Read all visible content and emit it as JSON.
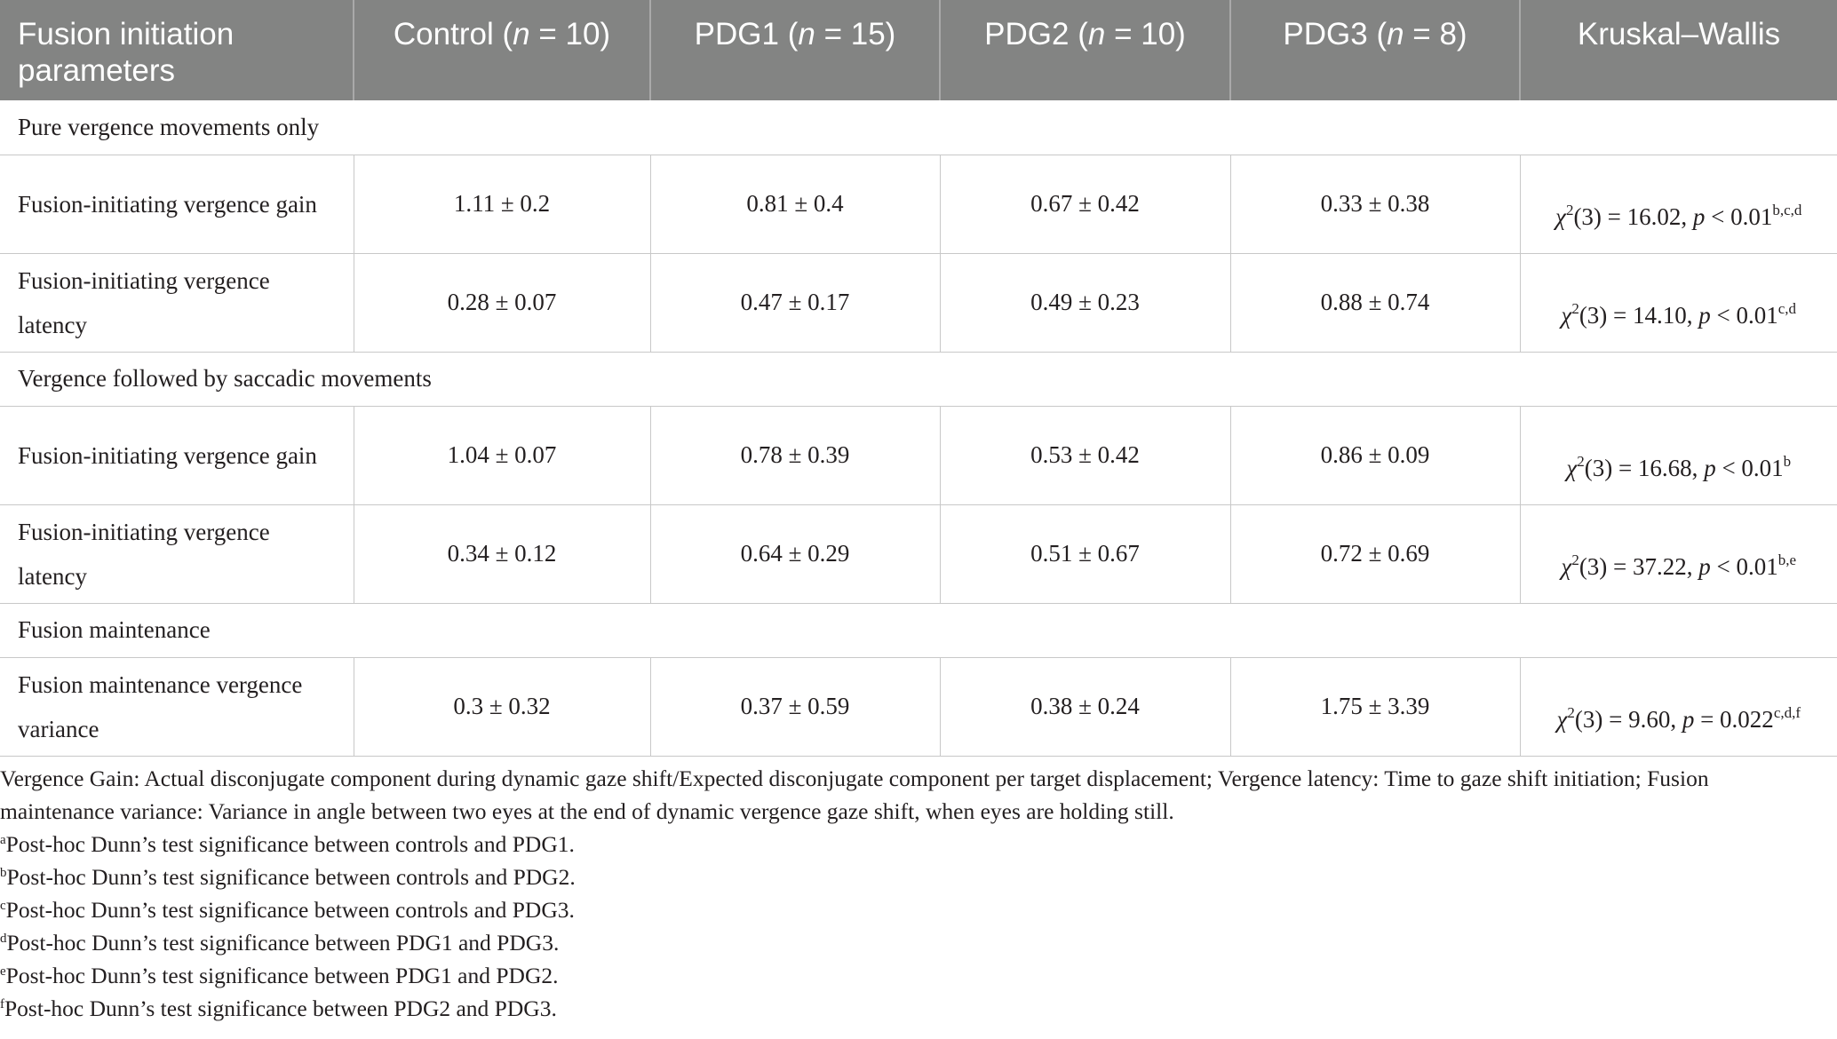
{
  "table": {
    "headers": [
      {
        "text": "Fusion initiation parameters"
      },
      {
        "pre": "Control (",
        "n": "n",
        "post": " = 10)"
      },
      {
        "pre": "PDG1 (",
        "n": "n",
        "post": " = 15)"
      },
      {
        "pre": "PDG2 (",
        "n": "n",
        "post": " = 10)"
      },
      {
        "pre": "PDG3 (",
        "n": "n",
        "post": " = 8)"
      },
      {
        "text": "Kruskal–Wallis"
      }
    ],
    "sections": [
      {
        "title": "Pure vergence movements only",
        "rows": [
          {
            "param": "Fusion-initiating vergence gain",
            "values": [
              "1.11 ± 0.2",
              "0.81 ± 0.4",
              "0.67 ± 0.42",
              "0.33 ± 0.38"
            ],
            "stat": {
              "chi": "χ",
              "df": "2",
              "rest": "(3) = 16.02, ",
              "p": "p",
              "cmp": " < 0.01",
              "sup": "b,c,d"
            }
          },
          {
            "param": "Fusion-initiating vergence latency",
            "values": [
              "0.28 ± 0.07",
              "0.47 ± 0.17",
              "0.49 ± 0.23",
              "0.88 ± 0.74"
            ],
            "stat": {
              "chi": "χ",
              "df": "2",
              "rest": "(3) = 14.10, ",
              "p": "p",
              "cmp": " < 0.01",
              "sup": "c,d"
            }
          }
        ]
      },
      {
        "title": "Vergence followed by saccadic movements",
        "rows": [
          {
            "param": "Fusion-initiating vergence gain",
            "values": [
              "1.04 ± 0.07",
              "0.78 ± 0.39",
              "0.53 ± 0.42",
              "0.86 ± 0.09"
            ],
            "stat": {
              "chi": "χ",
              "df": "2",
              "rest": "(3) = 16.68, ",
              "p": "p",
              "cmp": " < 0.01",
              "sup": "b"
            }
          },
          {
            "param": "Fusion-initiating vergence latency",
            "values": [
              "0.34 ± 0.12",
              "0.64 ± 0.29",
              "0.51 ± 0.67",
              "0.72 ± 0.69"
            ],
            "stat": {
              "chi": "χ",
              "df": "2",
              "rest": "(3) = 37.22, ",
              "p": "p",
              "cmp": " < 0.01",
              "sup": "b,e"
            }
          }
        ]
      },
      {
        "title": "Fusion maintenance",
        "rows": [
          {
            "param": "Fusion maintenance vergence variance",
            "values": [
              "0.3 ± 0.32",
              "0.37 ± 0.59",
              "0.38 ± 0.24",
              "1.75 ± 3.39"
            ],
            "stat": {
              "chi": "χ",
              "df": "2",
              "rest": "(3) = 9.60, ",
              "p": "p",
              "cmp": " = 0.022",
              "sup": "c,d,f"
            }
          }
        ]
      }
    ]
  },
  "footnotes": {
    "definition": "Vergence Gain: Actual disconjugate component during dynamic gaze shift/Expected disconjugate component per target displacement; Vergence latency: Time to gaze shift initiation; Fusion maintenance variance: Variance in angle between two eyes at the end of dynamic vergence gaze shift, when eyes are holding still.",
    "notes": [
      {
        "mark": "a",
        "text": "Post-hoc Dunn’s test significance between controls and PDG1."
      },
      {
        "mark": "b",
        "text": "Post-hoc Dunn’s test significance between controls and PDG2."
      },
      {
        "mark": "c",
        "text": "Post-hoc Dunn’s test significance between controls and PDG3."
      },
      {
        "mark": "d",
        "text": "Post-hoc Dunn’s test significance between PDG1 and PDG3."
      },
      {
        "mark": "e",
        "text": "Post-hoc Dunn’s test significance between PDG1 and PDG2."
      },
      {
        "mark": "f",
        "text": "Post-hoc Dunn’s test significance between PDG2 and PDG3."
      }
    ]
  }
}
